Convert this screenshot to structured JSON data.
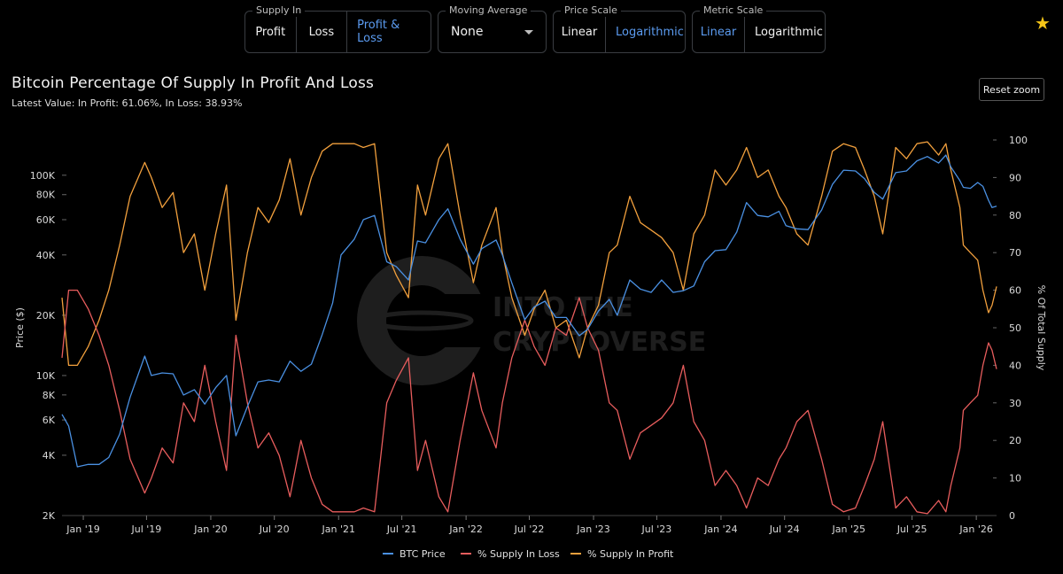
{
  "controls": {
    "supply_in": {
      "label": "Supply In",
      "options": [
        "Profit",
        "Loss",
        "Profit & Loss"
      ],
      "selected": "Profit & Loss"
    },
    "moving_average": {
      "label": "Moving Average",
      "value": "None"
    },
    "price_scale": {
      "label": "Price Scale",
      "options": [
        "Linear",
        "Logarithmic"
      ],
      "selected": "Logarithmic"
    },
    "metric_scale": {
      "label": "Metric Scale",
      "options": [
        "Linear",
        "Logarithmic"
      ],
      "selected": "Linear"
    }
  },
  "reset_zoom_label": "Reset zoom",
  "watermark": "INTO THE CRYPTOVERSE",
  "colors": {
    "btc": "#4a90e2",
    "loss": "#e85d5d",
    "profit": "#f2a03d",
    "accent": "#5b9bf0",
    "star": "#f5c518"
  },
  "chart_data": {
    "type": "line",
    "title": "Bitcoin Percentage Of Supply In Profit And Loss",
    "subtitle": "Latest Value: In Profit: 61.06%, In Loss: 38.93%",
    "ylabel_left": "Price ($)",
    "ylabel_right": "% Of Total Supply",
    "left_scale": "log",
    "ylim_left": [
      2000,
      150000
    ],
    "ylim_right": [
      0,
      100
    ],
    "left_ticks": [
      {
        "value": 2000,
        "label": "2K"
      },
      {
        "value": 4000,
        "label": "4K"
      },
      {
        "value": 6000,
        "label": "6K"
      },
      {
        "value": 8000,
        "label": "8K"
      },
      {
        "value": 10000,
        "label": "10K"
      },
      {
        "value": 20000,
        "label": "20K"
      },
      {
        "value": 40000,
        "label": "40K"
      },
      {
        "value": 60000,
        "label": "60K"
      },
      {
        "value": 80000,
        "label": "80K"
      },
      {
        "value": 100000,
        "label": "100K"
      }
    ],
    "right_ticks": [
      0,
      10,
      20,
      30,
      40,
      50,
      60,
      70,
      80,
      90,
      100
    ],
    "x_range": [
      "2018-11-01",
      "2026-02-28"
    ],
    "x_ticks": [
      {
        "date": "2019-01-01",
        "label": "Jan '19"
      },
      {
        "date": "2019-07-01",
        "label": "Jul '19"
      },
      {
        "date": "2020-01-01",
        "label": "Jan '20"
      },
      {
        "date": "2020-07-01",
        "label": "Jul '20"
      },
      {
        "date": "2021-01-01",
        "label": "Jan '21"
      },
      {
        "date": "2021-07-01",
        "label": "Jul '21"
      },
      {
        "date": "2022-01-01",
        "label": "Jan '22"
      },
      {
        "date": "2022-07-01",
        "label": "Jul '22"
      },
      {
        "date": "2023-01-01",
        "label": "Jan '23"
      },
      {
        "date": "2023-07-01",
        "label": "Jul '23"
      },
      {
        "date": "2024-01-01",
        "label": "Jan '24"
      },
      {
        "date": "2024-07-01",
        "label": "Jul '24"
      },
      {
        "date": "2025-01-01",
        "label": "Jan '25"
      },
      {
        "date": "2025-07-01",
        "label": "Jul '25"
      },
      {
        "date": "2026-01-01",
        "label": "Jan '26"
      }
    ],
    "grid": false,
    "legend_position": "bottom-center",
    "series": [
      {
        "name": "BTC Price",
        "axis": "left",
        "color": "#4a90e2",
        "x": [
          "2018-11-01",
          "2018-11-20",
          "2018-12-15",
          "2019-01-15",
          "2019-02-15",
          "2019-03-15",
          "2019-04-15",
          "2019-05-15",
          "2019-06-26",
          "2019-07-15",
          "2019-08-15",
          "2019-09-15",
          "2019-10-15",
          "2019-11-15",
          "2019-12-15",
          "2020-01-15",
          "2020-02-15",
          "2020-03-13",
          "2020-04-15",
          "2020-05-15",
          "2020-06-15",
          "2020-07-15",
          "2020-08-15",
          "2020-09-15",
          "2020-10-15",
          "2020-11-15",
          "2020-12-15",
          "2021-01-08",
          "2021-02-15",
          "2021-03-13",
          "2021-04-14",
          "2021-05-19",
          "2021-06-15",
          "2021-07-20",
          "2021-08-15",
          "2021-09-07",
          "2021-10-15",
          "2021-11-10",
          "2021-12-15",
          "2022-01-22",
          "2022-02-15",
          "2022-03-28",
          "2022-04-15",
          "2022-05-12",
          "2022-06-18",
          "2022-07-15",
          "2022-08-15",
          "2022-09-15",
          "2022-10-15",
          "2022-11-21",
          "2022-12-15",
          "2023-01-15",
          "2023-02-15",
          "2023-03-10",
          "2023-04-15",
          "2023-05-15",
          "2023-06-15",
          "2023-07-15",
          "2023-08-17",
          "2023-09-15",
          "2023-10-15",
          "2023-11-15",
          "2023-12-15",
          "2024-01-15",
          "2024-02-15",
          "2024-03-14",
          "2024-04-15",
          "2024-05-15",
          "2024-06-15",
          "2024-07-05",
          "2024-08-05",
          "2024-09-06",
          "2024-10-15",
          "2024-11-15",
          "2024-12-17",
          "2025-01-20",
          "2025-02-15",
          "2025-03-15",
          "2025-04-08",
          "2025-05-15",
          "2025-06-15",
          "2025-07-15",
          "2025-08-14",
          "2025-09-15",
          "2025-10-06",
          "2025-10-20",
          "2025-11-15",
          "2025-11-25",
          "2025-12-15",
          "2026-01-05",
          "2026-01-20",
          "2026-02-05",
          "2026-02-15",
          "2026-02-28"
        ],
        "values": [
          6400,
          5600,
          3500,
          3600,
          3600,
          3900,
          5100,
          7800,
          12500,
          10000,
          10300,
          10200,
          8000,
          8500,
          7200,
          8700,
          10000,
          5000,
          7000,
          9300,
          9500,
          9300,
          11800,
          10500,
          11400,
          16000,
          23000,
          40000,
          48000,
          60000,
          63000,
          37000,
          35000,
          30000,
          47000,
          46000,
          60000,
          68000,
          48000,
          36000,
          43000,
          47500,
          40000,
          29000,
          19000,
          22000,
          23500,
          19500,
          19500,
          15800,
          17000,
          21000,
          24000,
          20000,
          30000,
          27000,
          26000,
          30000,
          26000,
          26500,
          28000,
          37000,
          42000,
          42500,
          52000,
          73000,
          63000,
          62000,
          66000,
          56000,
          54000,
          53500,
          67000,
          90000,
          106000,
          105000,
          96000,
          82000,
          76000,
          103000,
          105000,
          118000,
          124000,
          115000,
          126000,
          110000,
          94000,
          87000,
          86000,
          92000,
          88000,
          75000,
          69000,
          70000
        ]
      },
      {
        "name": "% Supply In Loss",
        "axis": "right",
        "color": "#e85d5d",
        "x": [
          "2018-11-01",
          "2018-11-20",
          "2018-12-15",
          "2019-01-15",
          "2019-02-15",
          "2019-03-15",
          "2019-04-15",
          "2019-05-15",
          "2019-06-26",
          "2019-07-15",
          "2019-08-15",
          "2019-09-15",
          "2019-10-15",
          "2019-11-15",
          "2019-12-15",
          "2020-01-15",
          "2020-02-15",
          "2020-03-13",
          "2020-04-15",
          "2020-05-15",
          "2020-06-15",
          "2020-07-15",
          "2020-08-15",
          "2020-09-15",
          "2020-10-15",
          "2020-11-15",
          "2020-12-15",
          "2021-01-08",
          "2021-02-15",
          "2021-03-13",
          "2021-04-14",
          "2021-05-19",
          "2021-06-15",
          "2021-07-20",
          "2021-08-15",
          "2021-09-07",
          "2021-10-15",
          "2021-11-10",
          "2021-12-15",
          "2022-01-22",
          "2022-02-15",
          "2022-03-28",
          "2022-04-15",
          "2022-05-12",
          "2022-06-18",
          "2022-07-15",
          "2022-08-15",
          "2022-09-15",
          "2022-10-15",
          "2022-11-21",
          "2022-12-15",
          "2023-01-15",
          "2023-02-15",
          "2023-03-10",
          "2023-04-15",
          "2023-05-15",
          "2023-06-15",
          "2023-07-15",
          "2023-08-17",
          "2023-09-15",
          "2023-10-15",
          "2023-11-15",
          "2023-12-15",
          "2024-01-15",
          "2024-02-15",
          "2024-03-14",
          "2024-04-15",
          "2024-05-15",
          "2024-06-15",
          "2024-07-05",
          "2024-08-05",
          "2024-09-06",
          "2024-10-15",
          "2024-11-15",
          "2024-12-17",
          "2025-01-20",
          "2025-02-15",
          "2025-03-15",
          "2025-04-08",
          "2025-05-15",
          "2025-06-15",
          "2025-07-15",
          "2025-08-14",
          "2025-09-15",
          "2025-10-06",
          "2025-10-20",
          "2025-11-15",
          "2025-11-25",
          "2025-12-15",
          "2026-01-05",
          "2026-01-20",
          "2026-02-05",
          "2026-02-15",
          "2026-02-28"
        ],
        "values": [
          42,
          60,
          60,
          55,
          48,
          40,
          28,
          15,
          6,
          10,
          18,
          14,
          30,
          25,
          40,
          25,
          12,
          48,
          30,
          18,
          22,
          16,
          5,
          20,
          10,
          3,
          1,
          1,
          1,
          2,
          1,
          30,
          36,
          42,
          12,
          20,
          5,
          1,
          20,
          38,
          28,
          18,
          30,
          42,
          52,
          45,
          40,
          50,
          48,
          58,
          50,
          44,
          30,
          28,
          15,
          22,
          24,
          26,
          30,
          40,
          25,
          20,
          8,
          12,
          8,
          2,
          10,
          8,
          15,
          18,
          25,
          28,
          15,
          3,
          1,
          2,
          8,
          15,
          25,
          2,
          5,
          1,
          0.5,
          4,
          1,
          8,
          18,
          28,
          30,
          32,
          40,
          46,
          44,
          39
        ]
      },
      {
        "name": "% Supply In Profit",
        "axis": "right",
        "color": "#f2a03d",
        "x": [
          "2018-11-01",
          "2018-11-20",
          "2018-12-15",
          "2019-01-15",
          "2019-02-15",
          "2019-03-15",
          "2019-04-15",
          "2019-05-15",
          "2019-06-26",
          "2019-07-15",
          "2019-08-15",
          "2019-09-15",
          "2019-10-15",
          "2019-11-15",
          "2019-12-15",
          "2020-01-15",
          "2020-02-15",
          "2020-03-13",
          "2020-04-15",
          "2020-05-15",
          "2020-06-15",
          "2020-07-15",
          "2020-08-15",
          "2020-09-15",
          "2020-10-15",
          "2020-11-15",
          "2020-12-15",
          "2021-01-08",
          "2021-02-15",
          "2021-03-13",
          "2021-04-14",
          "2021-05-19",
          "2021-06-15",
          "2021-07-20",
          "2021-08-15",
          "2021-09-07",
          "2021-10-15",
          "2021-11-10",
          "2021-12-15",
          "2022-01-22",
          "2022-02-15",
          "2022-03-28",
          "2022-04-15",
          "2022-05-12",
          "2022-06-18",
          "2022-07-15",
          "2022-08-15",
          "2022-09-15",
          "2022-10-15",
          "2022-11-21",
          "2022-12-15",
          "2023-01-15",
          "2023-02-15",
          "2023-03-10",
          "2023-04-15",
          "2023-05-15",
          "2023-06-15",
          "2023-07-15",
          "2023-08-17",
          "2023-09-15",
          "2023-10-15",
          "2023-11-15",
          "2023-12-15",
          "2024-01-15",
          "2024-02-15",
          "2024-03-14",
          "2024-04-15",
          "2024-05-15",
          "2024-06-15",
          "2024-07-05",
          "2024-08-05",
          "2024-09-06",
          "2024-10-15",
          "2024-11-15",
          "2024-12-17",
          "2025-01-20",
          "2025-02-15",
          "2025-03-15",
          "2025-04-08",
          "2025-05-15",
          "2025-06-15",
          "2025-07-15",
          "2025-08-14",
          "2025-09-15",
          "2025-10-06",
          "2025-10-20",
          "2025-11-15",
          "2025-11-25",
          "2025-12-15",
          "2026-01-05",
          "2026-01-20",
          "2026-02-05",
          "2026-02-15",
          "2026-02-28"
        ],
        "values": [
          58,
          40,
          40,
          45,
          52,
          60,
          72,
          85,
          94,
          90,
          82,
          86,
          70,
          75,
          60,
          75,
          88,
          52,
          70,
          82,
          78,
          84,
          95,
          80,
          90,
          97,
          99,
          99,
          99,
          98,
          99,
          70,
          64,
          58,
          88,
          80,
          95,
          99,
          80,
          62,
          72,
          82,
          70,
          58,
          48,
          55,
          60,
          50,
          52,
          42,
          50,
          56,
          70,
          72,
          85,
          78,
          76,
          74,
          70,
          60,
          75,
          80,
          92,
          88,
          92,
          98,
          90,
          92,
          85,
          82,
          75,
          72,
          85,
          97,
          99,
          98,
          92,
          85,
          75,
          98,
          95,
          99,
          99.5,
          96,
          99,
          92,
          82,
          72,
          70,
          68,
          60,
          54,
          56,
          61
        ]
      }
    ]
  }
}
